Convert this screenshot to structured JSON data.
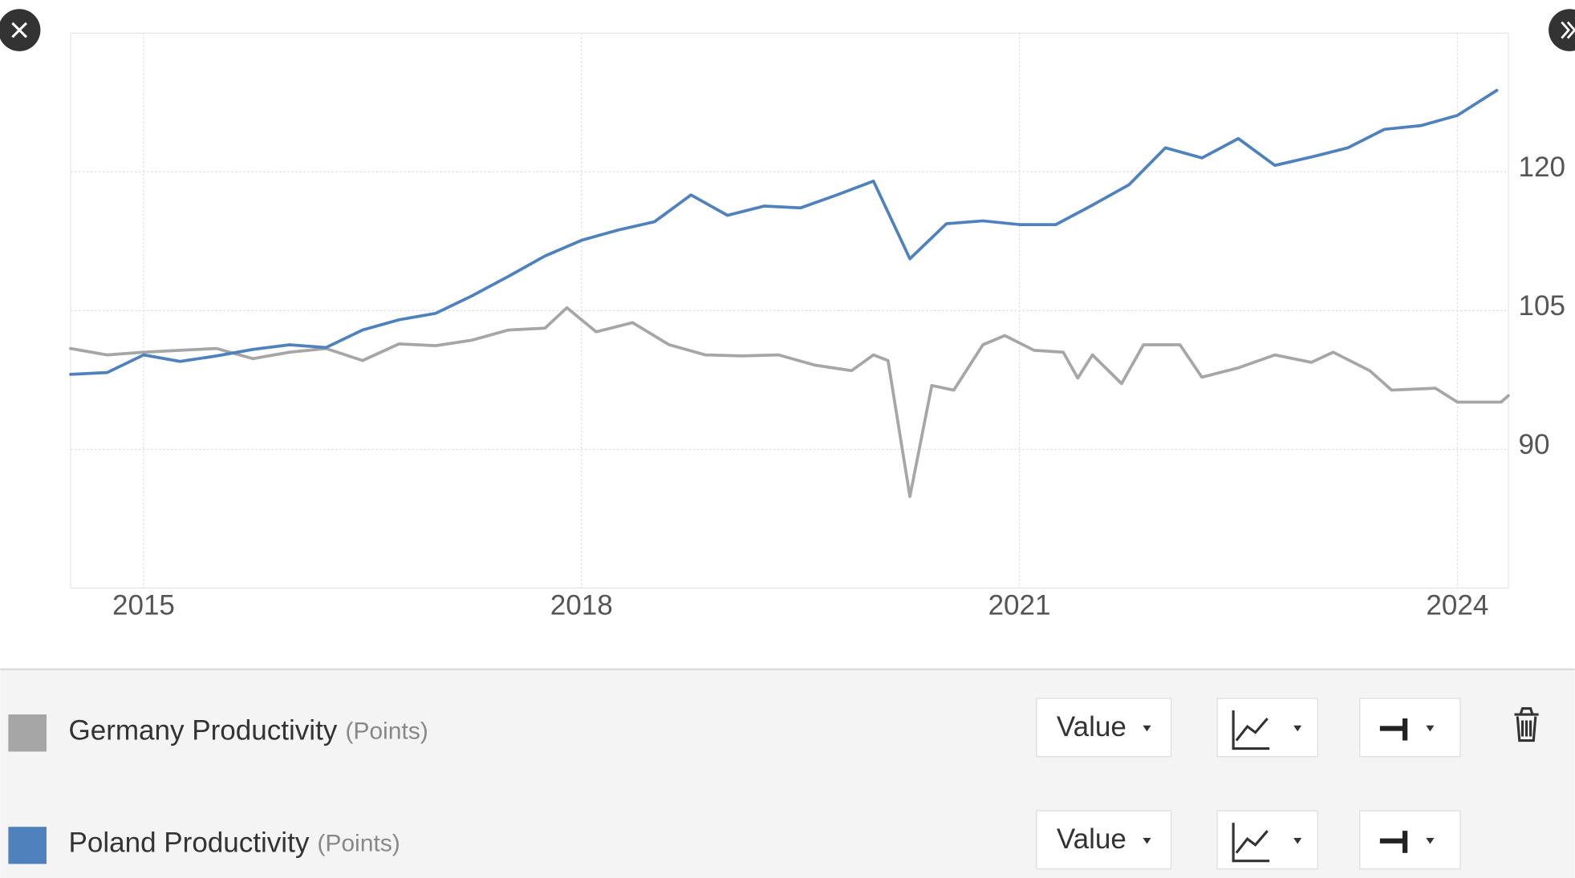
{
  "chart_data": {
    "type": "line",
    "xlim": [
      2014.5,
      2024.35
    ],
    "xticks": [
      2015,
      2018,
      2021,
      2024
    ],
    "ylim": [
      75,
      135
    ],
    "yticks": [
      90,
      105,
      120
    ],
    "grid": true,
    "series": [
      {
        "name": "Germany Productivity",
        "unit": "(Points)",
        "color": "#a6a6a6",
        "x": [
          2014.5,
          2014.75,
          2015.0,
          2015.25,
          2015.5,
          2015.75,
          2016.0,
          2016.25,
          2016.5,
          2016.75,
          2017.0,
          2017.25,
          2017.5,
          2017.75,
          2017.9,
          2018.1,
          2018.35,
          2018.6,
          2018.85,
          2019.1,
          2019.35,
          2019.6,
          2019.85,
          2020.0,
          2020.1,
          2020.25,
          2020.4,
          2020.55,
          2020.75,
          2020.9,
          2021.1,
          2021.3,
          2021.4,
          2021.5,
          2021.7,
          2021.85,
          2022.1,
          2022.25,
          2022.5,
          2022.75,
          2023.0,
          2023.15,
          2023.4,
          2023.55,
          2023.85,
          2024.0,
          2024.3,
          2024.35
        ],
        "values": [
          100.9,
          100.2,
          100.5,
          100.7,
          100.9,
          99.8,
          100.5,
          100.9,
          99.6,
          101.4,
          101.2,
          101.8,
          102.9,
          103.1,
          105.3,
          102.7,
          103.7,
          101.3,
          100.2,
          100.1,
          100.2,
          99.1,
          98.5,
          100.2,
          99.6,
          84.9,
          96.9,
          96.4,
          101.3,
          102.3,
          100.7,
          100.5,
          97.7,
          100.2,
          97.1,
          101.3,
          101.3,
          97.8,
          98.8,
          100.2,
          99.4,
          100.5,
          98.5,
          96.4,
          96.6,
          95.1,
          95.1,
          95.8
        ]
      },
      {
        "name": "Poland Productivity",
        "unit": "(Points)",
        "color": "#4f81bd",
        "x": [
          2014.5,
          2014.75,
          2015.0,
          2015.25,
          2015.5,
          2015.75,
          2016.0,
          2016.25,
          2016.5,
          2016.75,
          2017.0,
          2017.25,
          2017.5,
          2017.75,
          2018.0,
          2018.25,
          2018.5,
          2018.75,
          2019.0,
          2019.25,
          2019.5,
          2019.75,
          2020.0,
          2020.25,
          2020.5,
          2020.75,
          2021.0,
          2021.25,
          2021.5,
          2021.75,
          2022.0,
          2022.25,
          2022.5,
          2022.75,
          2023.0,
          2023.25,
          2023.5,
          2023.75,
          2024.0,
          2024.27
        ],
        "values": [
          98.1,
          98.3,
          100.2,
          99.5,
          100.1,
          100.8,
          101.3,
          101.0,
          102.9,
          104.0,
          104.7,
          106.6,
          108.7,
          110.9,
          112.6,
          113.7,
          114.6,
          117.5,
          115.3,
          116.3,
          116.1,
          117.5,
          119.0,
          110.6,
          114.4,
          114.7,
          114.3,
          114.3,
          116.4,
          118.6,
          122.6,
          121.5,
          123.6,
          120.7,
          121.6,
          122.6,
          124.6,
          125.0,
          126.1,
          128.8
        ]
      }
    ]
  },
  "controls": {
    "value_button": "Value"
  }
}
